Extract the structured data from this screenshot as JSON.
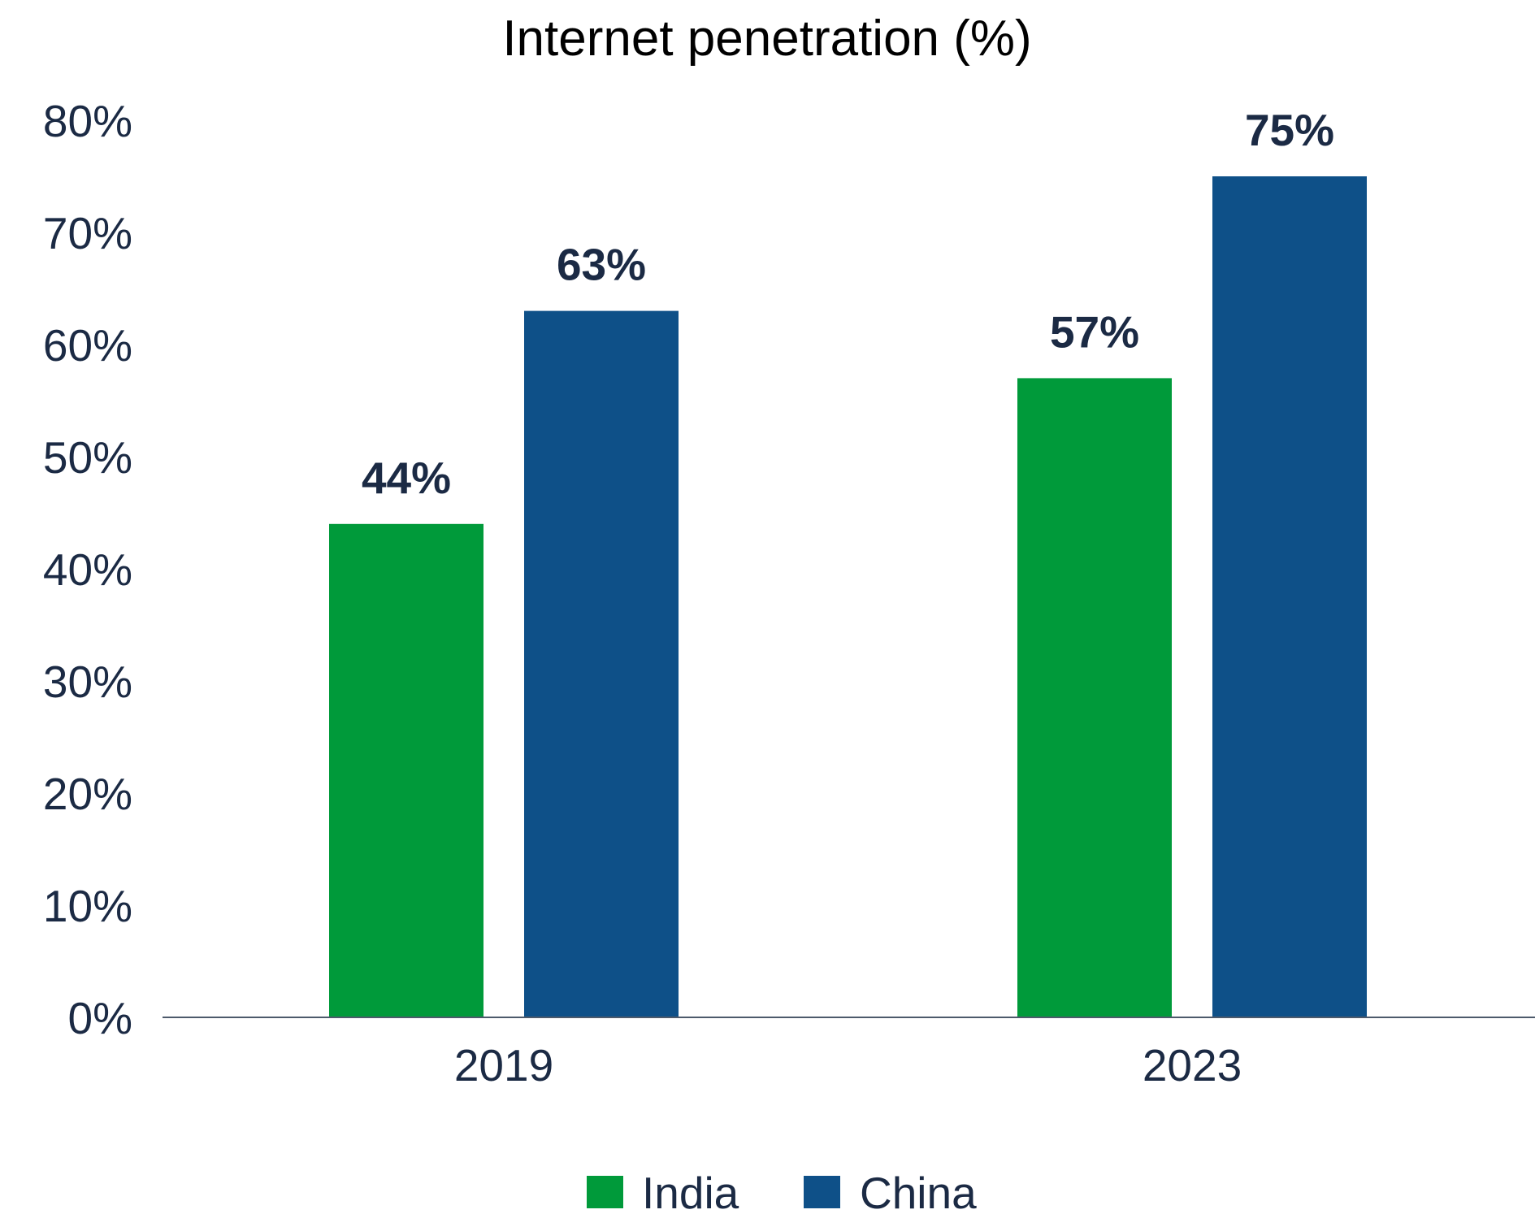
{
  "chart_data": {
    "type": "bar",
    "title": "Internet penetration (%)",
    "categories": [
      "2019",
      "2023"
    ],
    "series": [
      {
        "name": "India",
        "color": "#009a3a",
        "values": [
          44,
          57
        ],
        "labels": [
          "44%",
          "57%"
        ]
      },
      {
        "name": "China",
        "color": "#0e5088",
        "values": [
          63,
          75
        ],
        "labels": [
          "63%",
          "75%"
        ]
      }
    ],
    "ylim": [
      0,
      80
    ],
    "yticks": [
      "0%",
      "10%",
      "20%",
      "30%",
      "40%",
      "50%",
      "60%",
      "70%",
      "80%"
    ],
    "grid": false,
    "legend": "bottom",
    "axis_color": "#4d5a6b"
  }
}
